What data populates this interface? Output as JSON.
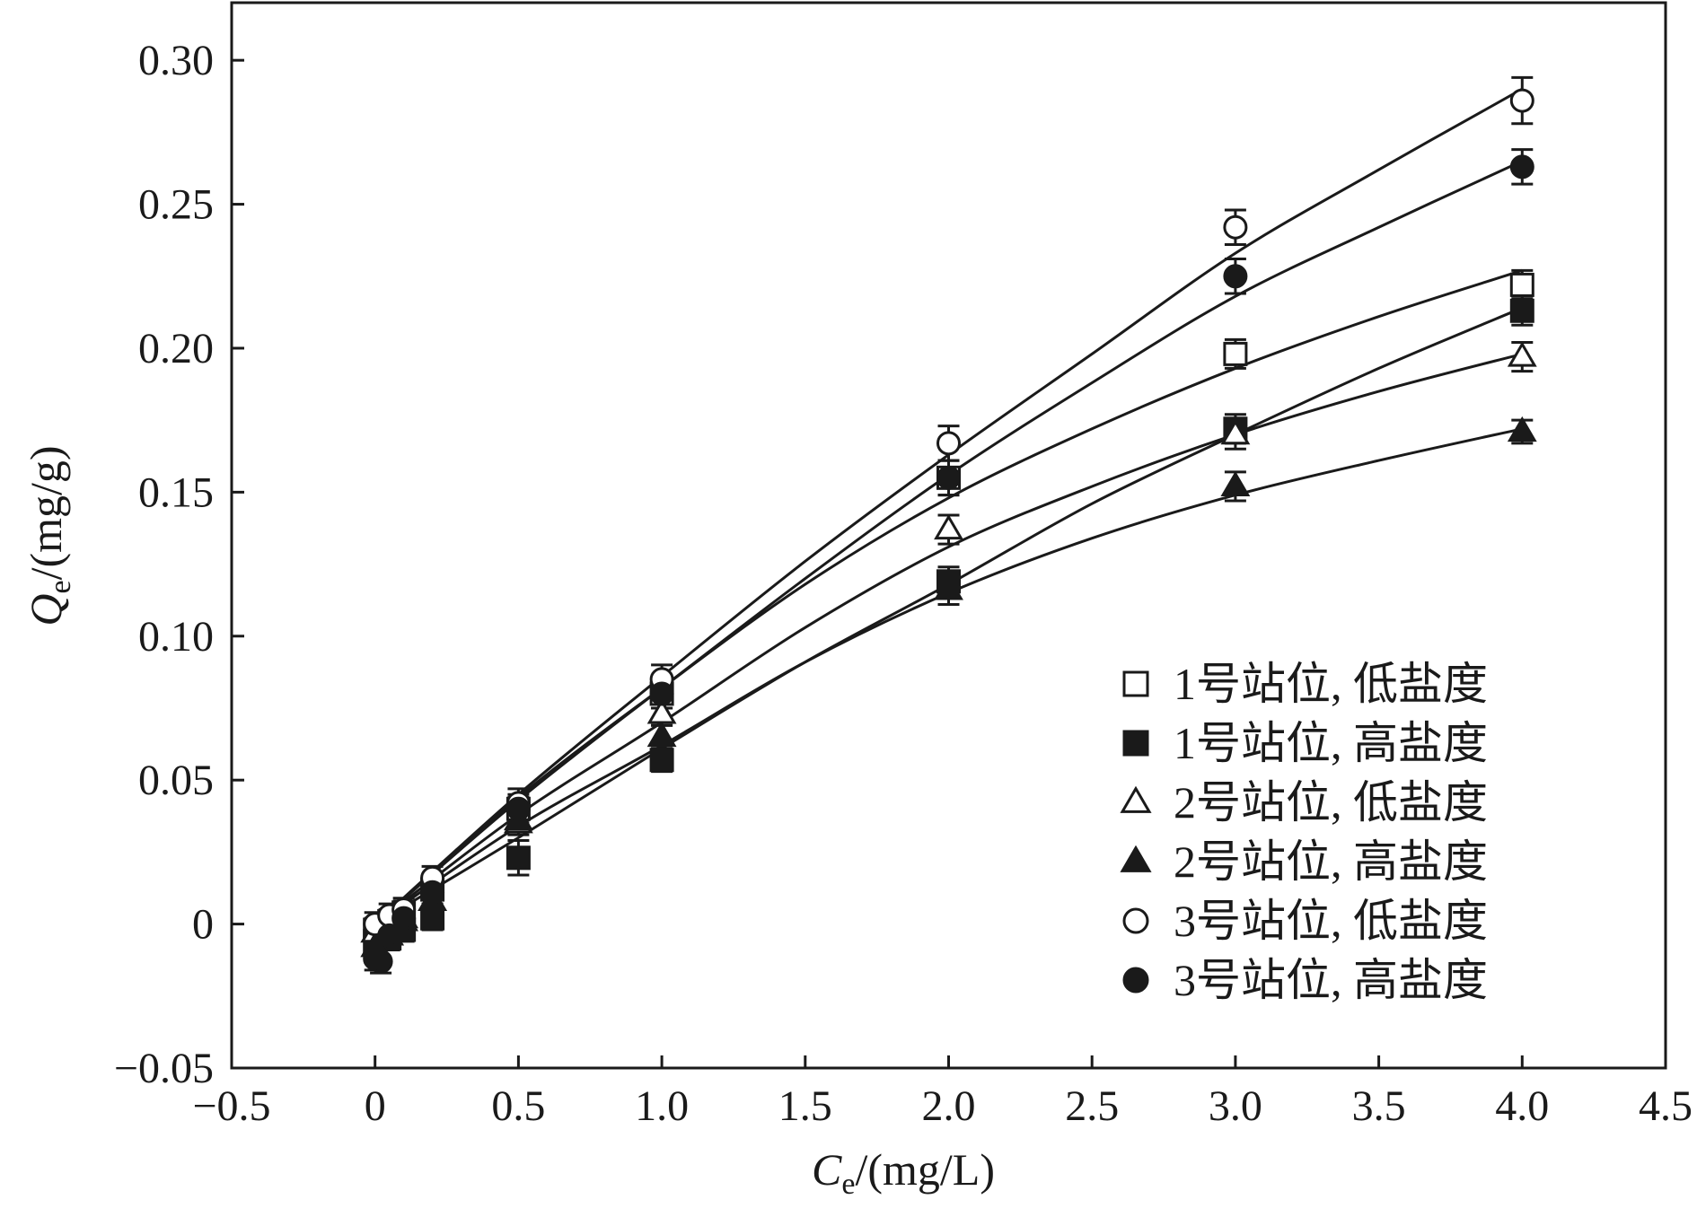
{
  "chart_data": {
    "type": "scatter",
    "xlabel": {
      "symbol": "C",
      "subscript": "e",
      "unit": "/(mg/L)"
    },
    "ylabel": {
      "symbol": "Q",
      "subscript": "e",
      "unit": "/(mg/g)"
    },
    "xlim": [
      -0.5,
      4.5
    ],
    "ylim": [
      -0.05,
      0.32
    ],
    "x_ticks": [
      -0.5,
      0,
      0.5,
      1.0,
      1.5,
      2.0,
      2.5,
      3.0,
      3.5,
      4.0,
      4.5
    ],
    "x_tick_labels": [
      "−0.5",
      "0",
      "0.5",
      "1.0",
      "1.5",
      "2.0",
      "2.5",
      "3.0",
      "3.5",
      "4.0",
      "4.5"
    ],
    "y_ticks": [
      -0.05,
      0,
      0.05,
      0.1,
      0.15,
      0.2,
      0.25,
      0.3
    ],
    "y_tick_labels": [
      "−0.05",
      "0",
      "0.05",
      "0.10",
      "0.15",
      "0.20",
      "0.25",
      "0.30"
    ],
    "grid": false,
    "legend_position": "bottom-right",
    "series": [
      {
        "name": "1号站位, 低盐度",
        "marker": "square-open",
        "x": [
          0,
          0.05,
          0.1,
          0.2,
          0.5,
          1.0,
          2.0,
          3.0,
          4.0
        ],
        "y": [
          -0.002,
          0.001,
          0.004,
          0.012,
          0.04,
          0.08,
          0.155,
          0.198,
          0.222
        ],
        "err": [
          0.004,
          0.004,
          0.004,
          0.005,
          0.005,
          0.005,
          0.006,
          0.005,
          0.005
        ],
        "fit_x": [
          0,
          0.5,
          1.0,
          1.5,
          2.0,
          2.5,
          3.0,
          3.5,
          4.0
        ],
        "fit_y": [
          0,
          0.044,
          0.082,
          0.118,
          0.148,
          0.172,
          0.193,
          0.211,
          0.227
        ]
      },
      {
        "name": "1号站位, 高盐度",
        "marker": "square-filled",
        "x": [
          0,
          0.05,
          0.1,
          0.2,
          0.5,
          1.0,
          2.0,
          3.0,
          4.0
        ],
        "y": [
          -0.006,
          -0.005,
          -0.002,
          0.002,
          0.023,
          0.057,
          0.119,
          0.172,
          0.213
        ],
        "err": [
          0.004,
          0.004,
          0.004,
          0.004,
          0.006,
          0.004,
          0.005,
          0.005,
          0.005
        ],
        "fit_x": [
          0,
          0.5,
          1.0,
          1.5,
          2.0,
          2.5,
          3.0,
          3.5,
          4.0
        ],
        "fit_y": [
          0,
          0.03,
          0.061,
          0.091,
          0.118,
          0.146,
          0.17,
          0.193,
          0.214
        ]
      },
      {
        "name": "2号站位, 低盐度",
        "marker": "triangle-open",
        "x": [
          0,
          0.05,
          0.1,
          0.2,
          0.5,
          1.0,
          2.0,
          3.0,
          4.0
        ],
        "y": [
          -0.003,
          0.0,
          0.002,
          0.008,
          0.035,
          0.073,
          0.137,
          0.17,
          0.197
        ],
        "err": [
          0.004,
          0.004,
          0.004,
          0.004,
          0.004,
          0.004,
          0.005,
          0.005,
          0.005
        ],
        "fit_x": [
          0,
          0.5,
          1.0,
          1.5,
          2.0,
          2.5,
          3.0,
          3.5,
          4.0
        ],
        "fit_y": [
          0,
          0.038,
          0.07,
          0.103,
          0.131,
          0.152,
          0.17,
          0.185,
          0.198
        ]
      },
      {
        "name": "2号站位, 高盐度",
        "marker": "triangle-filled",
        "x": [
          0,
          0.05,
          0.1,
          0.2,
          0.5,
          1.0,
          2.0,
          3.0,
          4.0
        ],
        "y": [
          -0.008,
          -0.004,
          0.001,
          0.008,
          0.036,
          0.065,
          0.116,
          0.152,
          0.171
        ],
        "err": [
          0.004,
          0.004,
          0.004,
          0.004,
          0.004,
          0.004,
          0.005,
          0.005,
          0.004
        ],
        "fit_x": [
          0,
          0.5,
          1.0,
          1.5,
          2.0,
          2.5,
          3.0,
          3.5,
          4.0
        ],
        "fit_y": [
          0,
          0.034,
          0.062,
          0.091,
          0.115,
          0.134,
          0.149,
          0.161,
          0.172
        ]
      },
      {
        "name": "3号站位, 低盐度",
        "marker": "circle-open",
        "x": [
          0,
          0.05,
          0.1,
          0.2,
          0.5,
          1.0,
          2.0,
          3.0,
          4.0
        ],
        "y": [
          0.0,
          0.003,
          0.005,
          0.016,
          0.042,
          0.085,
          0.167,
          0.242,
          0.286
        ],
        "err": [
          0.004,
          0.004,
          0.004,
          0.004,
          0.005,
          0.005,
          0.006,
          0.006,
          0.008
        ],
        "fit_x": [
          0,
          0.5,
          1.0,
          1.5,
          2.0,
          2.5,
          3.0,
          3.5,
          4.0
        ],
        "fit_y": [
          0,
          0.045,
          0.086,
          0.126,
          0.163,
          0.198,
          0.233,
          0.262,
          0.29
        ]
      },
      {
        "name": "3号站位, 高盐度",
        "marker": "circle-filled",
        "x": [
          0,
          0.02,
          0.05,
          0.1,
          0.2,
          0.5,
          1.0,
          2.0,
          3.0,
          4.0
        ],
        "y": [
          -0.012,
          -0.013,
          -0.004,
          0.002,
          0.011,
          0.04,
          0.08,
          0.155,
          0.225,
          0.263
        ],
        "err": [
          0.004,
          0.004,
          0.004,
          0.004,
          0.004,
          0.004,
          0.005,
          0.006,
          0.006,
          0.006
        ],
        "fit_x": [
          0,
          0.5,
          1.0,
          1.5,
          2.0,
          2.5,
          3.0,
          3.5,
          4.0
        ],
        "fit_y": [
          0,
          0.043,
          0.082,
          0.12,
          0.156,
          0.188,
          0.218,
          0.242,
          0.265
        ]
      }
    ]
  }
}
